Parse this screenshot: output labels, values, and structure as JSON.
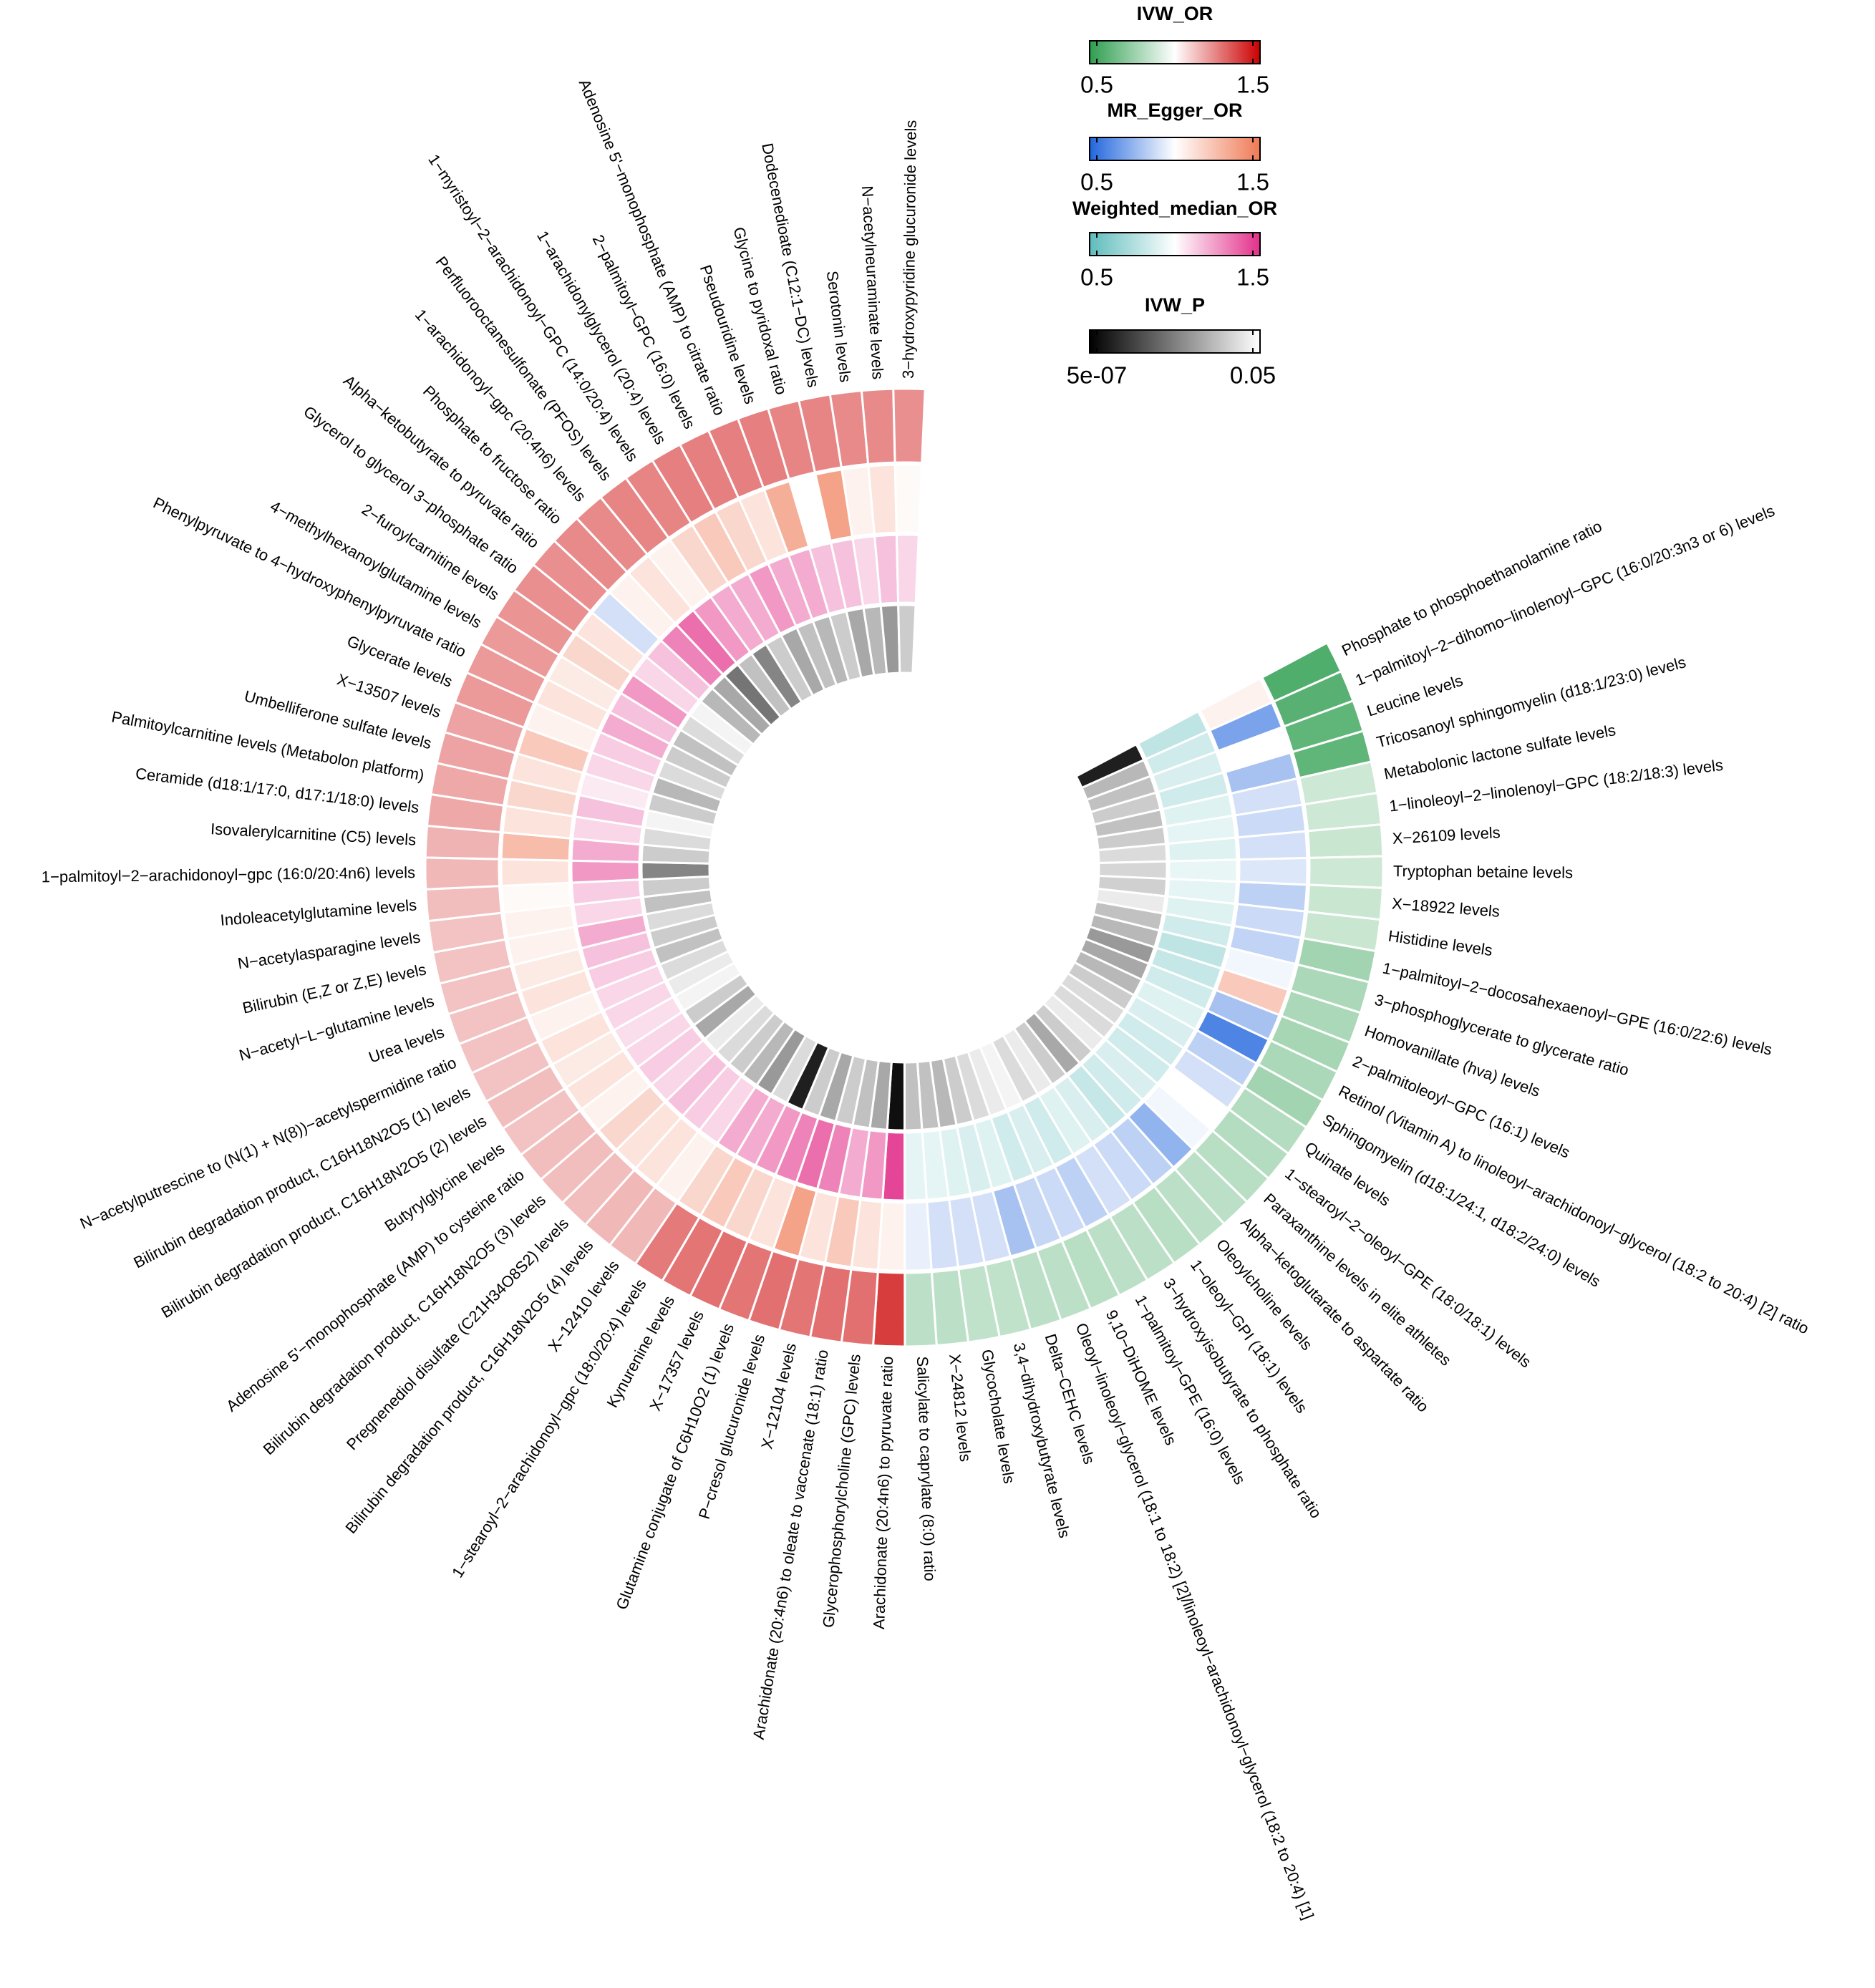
{
  "chart_data": {
    "type": "circular_heatmap",
    "categories": [
      "Phosphate to phosphoethanolamine ratio",
      "1−palmitoyl−2−dihomo−linolenoyl−GPC (16:0/20:3n3 or 6) levels",
      "Leucine levels",
      "Tricosanoyl sphingomyelin (d18:1/23:0) levels",
      "Metabolonic lactone sulfate levels",
      "1−linoleoyl−2−linolenoyl−GPC (18:2/18:3) levels",
      "X−26109 levels",
      "Tryptophan betaine levels",
      "X−18922 levels",
      "Histidine levels",
      "1−palmitoyl−2−docosahexaenoyl−GPE (16:0/22:6) levels",
      "3−phosphoglycerate to glycerate ratio",
      "Homovanillate (hva) levels",
      "2−palmitoleoyl−GPC (16:1) levels",
      "Retinol (Vitamin A) to linoleoyl−arachidonoyl−glycerol (18:2 to 20:4) [2] ratio",
      "Sphingomyelin (d18:1/24:1, d18:2/24:0) levels",
      "Quinate levels",
      "1−stearoyl−2−oleoyl−GPE (18:0/18:1) levels",
      "Paraxanthine levels in elite athletes",
      "Alpha−ketoglutarate to aspartate ratio",
      "Oleoylcholine levels",
      "1−oleoyl−GPI (18:1) levels",
      "3−hydroxyisobutyrate to phosphate ratio",
      "1−palmitoyl−GPE (16:0) levels",
      "9,10−DiHOME levels",
      "Oleoyl−linoleoyl−glycerol (18:1 to 18:2) [2]/linoleoyl−arachidonoyl−glycerol (18:2 to 20:4) [1]",
      "Delta−CEHC levels",
      "3,4−dihydroxybutyrate levels",
      "Glycocholate levels",
      "X−24812 levels",
      "Salicylate to caprylate (8:0) ratio",
      "Arachidonate (20:4n6) to pyruvate ratio",
      "Glycerophosphorylcholine (GPC) levels",
      "Arachidonate (20:4n6) to oleate to vaccenate (18:1) ratio",
      "X−12104 levels",
      "P−cresol glucuronide levels",
      "Glutamine conjugate of C6H10O2 (1) levels",
      "X−17357 levels",
      "Kynurenine levels",
      "1−stearoyl−2−arachidonoyl−gpc (18:0/20:4) levels",
      "X−12410 levels",
      "Bilirubin degradation product, C16H18N2O5 (4) levels",
      "Pregnenediol disulfate (C21H34O8S2) levels",
      "Bilirubin degradation product, C16H18N2O5 (3) levels",
      "Adenosine 5'−monophosphate (AMP) to cysteine ratio",
      "Butyrylglycine levels",
      "Bilirubin degradation product, C16H18N2O5 (2) levels",
      "Bilirubin degradation product, C16H18N2O5 (1) levels",
      "N−acetylputrescine to (N(1) + N(8))−acetylspermidine ratio",
      "Urea levels",
      "N−acetyl−L−glutamine levels",
      "Bilirubin (E,Z or Z,E) levels",
      "N−acetylasparagine levels",
      "Indoleacetylglutamine levels",
      "1−palmitoyl−2−arachidonoyl−gpc (16:0/20:4n6) levels",
      "Isovalerylcarnitine (C5) levels",
      "Ceramide (d18:1/17:0, d17:1/18:0) levels",
      "Palmitoylcarnitine levels (Metabolon platform)",
      "Umbelliferone sulfate levels",
      "X−13507 levels",
      "Glycerate levels",
      "Phenylpyruvate to 4−hydroxyphenylpyruvate ratio",
      "4−methylhexanoylglutamine levels",
      "2−furoylcarnitine levels",
      "Glycerol to glycerol 3−phosphate ratio",
      "Alpha−ketobutyrate to pyruvate ratio",
      "Phosphate to fructose ratio",
      "1−arachidonoyl−gpc (20:4n6) levels",
      "Perfluorooctanesulfonate (PFOS) levels",
      "1−myristoyl−2−arachidonoyl−GPC (14:0/20:4) levels",
      "1−arachidonylglycerol (20:4) levels",
      "2−palmitoyl−GPC (16:0) levels",
      "Adenosine 5'−monophosphate (AMP) to citrate ratio",
      "Pseudouridine levels",
      "Glycine to pyridoxal ratio",
      "Dodecenedioate (C12:1−DC) levels",
      "Serotonin levels",
      "N−acetylneuraminate levels",
      "3−hydroxypyridine glucuronide levels"
    ],
    "series": [
      {
        "name": "IVW_OR",
        "colors": [
          "#2e9e4f",
          "#ffffff",
          "#cc0000"
        ],
        "clim": [
          0.5,
          1.5
        ],
        "cticks": [
          0.5,
          1.5
        ],
        "values": [
          0.58,
          0.6,
          0.62,
          0.62,
          0.88,
          0.88,
          0.87,
          0.88,
          0.87,
          0.87,
          0.78,
          0.8,
          0.8,
          0.79,
          0.8,
          0.78,
          0.82,
          0.82,
          0.83,
          0.84,
          0.84,
          0.83,
          0.84,
          0.84,
          0.83,
          0.84,
          0.84,
          0.85,
          0.85,
          0.84,
          0.84,
          1.38,
          1.28,
          1.28,
          1.27,
          1.28,
          1.27,
          1.28,
          1.27,
          1.26,
          1.14,
          1.14,
          1.13,
          1.13,
          1.13,
          1.12,
          1.13,
          1.12,
          1.12,
          1.12,
          1.12,
          1.12,
          1.12,
          1.13,
          1.14,
          1.15,
          1.17,
          1.17,
          1.18,
          1.18,
          1.2,
          1.2,
          1.2,
          1.21,
          1.22,
          1.22,
          1.23,
          1.23,
          1.24,
          1.24,
          1.25,
          1.25,
          1.25,
          1.25,
          1.24,
          1.24,
          1.23,
          1.23,
          1.22
        ]
      },
      {
        "name": "MR_Egger_OR",
        "colors": [
          "#2266dd",
          "#ffffff",
          "#ef7a55"
        ],
        "clim": [
          0.5,
          1.5
        ],
        "cticks": [
          0.5,
          1.5
        ],
        "values": [
          1.05,
          0.7,
          1.0,
          0.8,
          0.9,
          0.88,
          0.9,
          0.92,
          0.85,
          0.88,
          0.86,
          0.97,
          1.2,
          0.8,
          0.6,
          0.85,
          0.9,
          1.0,
          0.97,
          0.75,
          0.85,
          0.88,
          0.9,
          0.85,
          0.88,
          0.87,
          0.8,
          0.9,
          0.9,
          0.9,
          0.95,
          1.05,
          1.1,
          1.2,
          1.1,
          1.35,
          1.1,
          1.15,
          1.2,
          1.15,
          1.05,
          1.1,
          1.1,
          1.15,
          1.05,
          1.1,
          1.08,
          1.1,
          1.05,
          1.1,
          1.08,
          1.05,
          1.05,
          1.02,
          1.1,
          1.25,
          1.1,
          1.15,
          1.1,
          1.2,
          1.05,
          1.1,
          1.08,
          1.15,
          1.1,
          0.9,
          1.05,
          1.1,
          1.05,
          1.15,
          1.2,
          1.15,
          1.1,
          1.3,
          1.0,
          1.35,
          1.05,
          1.1,
          1.02
        ]
      },
      {
        "name": "Weighted_median_OR",
        "colors": [
          "#5fbcbc",
          "#ffffff",
          "#e2308a"
        ],
        "clim": [
          0.5,
          1.5
        ],
        "cticks": [
          0.5,
          1.5
        ],
        "values": [
          0.8,
          0.85,
          0.88,
          0.85,
          0.9,
          0.92,
          0.9,
          0.93,
          0.92,
          0.9,
          0.85,
          0.8,
          0.82,
          0.85,
          0.9,
          0.88,
          0.85,
          0.85,
          0.88,
          0.85,
          0.82,
          0.88,
          0.9,
          0.85,
          0.88,
          0.85,
          0.9,
          0.88,
          0.9,
          0.92,
          0.92,
          1.45,
          1.25,
          1.2,
          1.3,
          1.35,
          1.3,
          1.25,
          1.2,
          1.2,
          1.1,
          1.12,
          1.15,
          1.1,
          1.12,
          1.1,
          1.08,
          1.1,
          1.1,
          1.12,
          1.15,
          1.2,
          1.1,
          1.12,
          1.25,
          1.2,
          1.1,
          1.15,
          1.05,
          1.1,
          1.12,
          1.2,
          1.15,
          1.25,
          1.1,
          1.15,
          1.3,
          1.35,
          1.25,
          1.2,
          1.2,
          1.25,
          1.2,
          1.2,
          1.15,
          1.15,
          1.1,
          1.15,
          1.1
        ]
      },
      {
        "name": "IVW_P",
        "colors": [
          "#000000",
          "#ffffff"
        ],
        "clim": [
          5e-07,
          0.05
        ],
        "log": true,
        "cticks": [
          {
            "value": 5e-07,
            "label": "5e-07"
          },
          0.05
        ],
        "values": [
          2e-06,
          0.002,
          0.003,
          0.005,
          0.003,
          0.005,
          0.01,
          0.008,
          0.006,
          0.02,
          0.003,
          0.002,
          0.0005,
          0.001,
          0.002,
          0.005,
          0.01,
          0.01,
          0.02,
          0.005,
          0.001,
          0.005,
          0.02,
          0.01,
          0.03,
          0.02,
          0.01,
          0.005,
          0.002,
          0.003,
          0.003,
          1e-06,
          0.001,
          0.003,
          0.005,
          0.001,
          0.005,
          2e-06,
          0.01,
          0.0005,
          0.002,
          0.005,
          0.01,
          0.02,
          0.001,
          0.005,
          0.03,
          0.02,
          0.01,
          0.003,
          0.005,
          0.01,
          0.003,
          0.005,
          0.0002,
          0.005,
          0.01,
          0.03,
          0.005,
          0.002,
          0.01,
          0.005,
          0.003,
          0.01,
          0.03,
          0.002,
          0.001,
          0.0001,
          0.003,
          0.0002,
          0.005,
          0.001,
          0.003,
          0.002,
          0.005,
          0.001,
          0.002,
          0.0005,
          0.005
        ]
      }
    ]
  }
}
